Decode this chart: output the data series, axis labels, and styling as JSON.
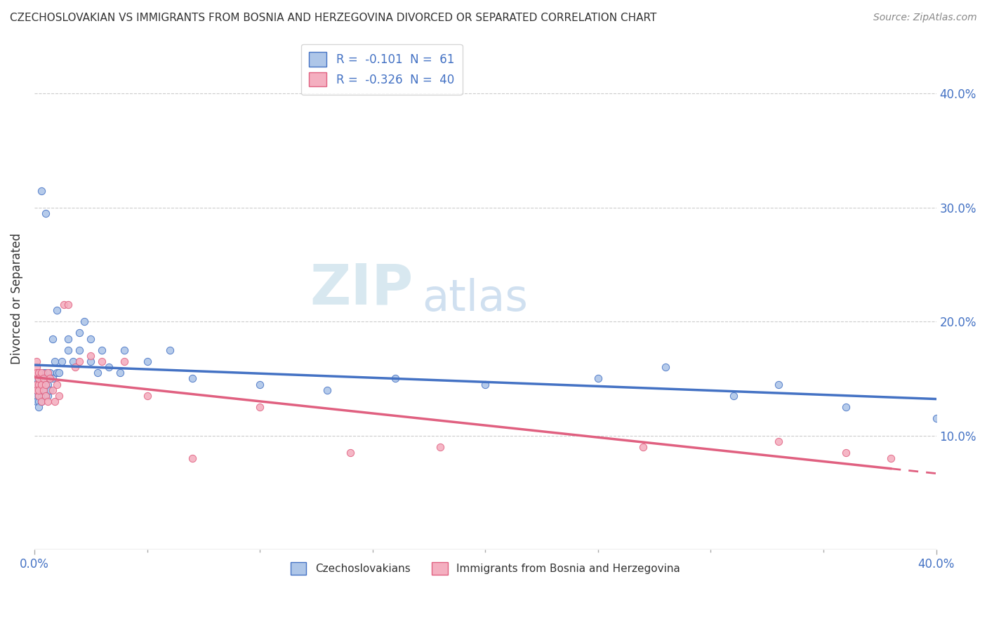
{
  "title": "CZECHOSLOVAKIAN VS IMMIGRANTS FROM BOSNIA AND HERZEGOVINA DIVORCED OR SEPARATED CORRELATION CHART",
  "source": "Source: ZipAtlas.com",
  "ylabel": "Divorced or Separated",
  "xlim": [
    0.0,
    0.4
  ],
  "ylim": [
    0.0,
    0.44
  ],
  "color_blue": "#aec6e8",
  "color_pink": "#f4afc0",
  "line_color_blue": "#4472c4",
  "line_color_pink": "#e06080",
  "background_color": "#ffffff",
  "series1_x": [
    0.001,
    0.001,
    0.001,
    0.001,
    0.001,
    0.002,
    0.002,
    0.002,
    0.002,
    0.002,
    0.002,
    0.002,
    0.003,
    0.003,
    0.003,
    0.003,
    0.003,
    0.004,
    0.004,
    0.004,
    0.005,
    0.005,
    0.006,
    0.006,
    0.007,
    0.007,
    0.008,
    0.009,
    0.01,
    0.011,
    0.012,
    0.015,
    0.017,
    0.02,
    0.022,
    0.025,
    0.028,
    0.033,
    0.038,
    0.05,
    0.07,
    0.1,
    0.13,
    0.16,
    0.2,
    0.25,
    0.28,
    0.31,
    0.33,
    0.36,
    0.4,
    0.003,
    0.005,
    0.008,
    0.01,
    0.015,
    0.02,
    0.025,
    0.03,
    0.04,
    0.06
  ],
  "series1_y": [
    0.135,
    0.14,
    0.145,
    0.13,
    0.15,
    0.15,
    0.14,
    0.135,
    0.145,
    0.155,
    0.13,
    0.125,
    0.145,
    0.13,
    0.14,
    0.135,
    0.15,
    0.145,
    0.155,
    0.135,
    0.155,
    0.14,
    0.145,
    0.135,
    0.155,
    0.14,
    0.15,
    0.165,
    0.155,
    0.155,
    0.165,
    0.175,
    0.165,
    0.175,
    0.2,
    0.165,
    0.155,
    0.16,
    0.155,
    0.165,
    0.15,
    0.145,
    0.14,
    0.15,
    0.145,
    0.15,
    0.16,
    0.135,
    0.145,
    0.125,
    0.115,
    0.315,
    0.295,
    0.185,
    0.21,
    0.185,
    0.19,
    0.185,
    0.175,
    0.175,
    0.175
  ],
  "series2_x": [
    0.001,
    0.001,
    0.001,
    0.001,
    0.001,
    0.002,
    0.002,
    0.002,
    0.002,
    0.002,
    0.003,
    0.003,
    0.003,
    0.004,
    0.004,
    0.005,
    0.005,
    0.006,
    0.006,
    0.007,
    0.008,
    0.009,
    0.01,
    0.011,
    0.013,
    0.015,
    0.018,
    0.02,
    0.025,
    0.03,
    0.04,
    0.05,
    0.07,
    0.1,
    0.14,
    0.18,
    0.27,
    0.33,
    0.36,
    0.38
  ],
  "series2_y": [
    0.16,
    0.145,
    0.155,
    0.14,
    0.165,
    0.155,
    0.145,
    0.15,
    0.135,
    0.14,
    0.145,
    0.155,
    0.13,
    0.14,
    0.15,
    0.145,
    0.135,
    0.155,
    0.13,
    0.15,
    0.14,
    0.13,
    0.145,
    0.135,
    0.215,
    0.215,
    0.16,
    0.165,
    0.17,
    0.165,
    0.165,
    0.135,
    0.08,
    0.125,
    0.085,
    0.09,
    0.09,
    0.095,
    0.085,
    0.08
  ]
}
